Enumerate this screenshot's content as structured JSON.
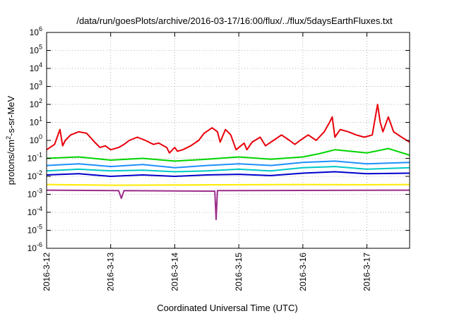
{
  "chart_data": {
    "type": "line",
    "title": "/data/run/goesPlots/archive/2016-03-17/16:00/flux/../flux/5daysEarthFluxes.txt",
    "xlabel": "Coordinated Universal Time (UTC)",
    "ylabel_parts": {
      "before": "protons/cm",
      "sup": "2",
      "after": "-s-sr-MeV"
    },
    "xlim": [
      "2016-03-12 00:00",
      "2016-03-17 16:00"
    ],
    "x_ticks": [
      "2016-3-12",
      "2016-3-13",
      "2016-3-14",
      "2016-3-15",
      "2016-3-16",
      "2016-3-17"
    ],
    "yscale": "log",
    "ylim": [
      1e-06,
      1000000.0
    ],
    "y_ticks": [
      {
        "base": "10",
        "exp": "-6"
      },
      {
        "base": "10",
        "exp": "-5"
      },
      {
        "base": "10",
        "exp": "-4"
      },
      {
        "base": "10",
        "exp": "-3"
      },
      {
        "base": "10",
        "exp": "-2"
      },
      {
        "base": "10",
        "exp": "-1"
      },
      {
        "base": "10",
        "exp": "0"
      },
      {
        "base": "10",
        "exp": "1"
      },
      {
        "base": "10",
        "exp": "2"
      },
      {
        "base": "10",
        "exp": "3"
      },
      {
        "base": "10",
        "exp": "4"
      },
      {
        "base": "10",
        "exp": "5"
      },
      {
        "base": "10",
        "exp": "6"
      }
    ],
    "grid": true,
    "series": [
      {
        "color": "#e8000b",
        "x": [
          "2016-03-12 00:00",
          "2016-03-12 03:00",
          "2016-03-12 05:00",
          "2016-03-12 06:00",
          "2016-03-12 07:00",
          "2016-03-12 09:00",
          "2016-03-12 12:00",
          "2016-03-12 15:00",
          "2016-03-12 18:00",
          "2016-03-12 20:00",
          "2016-03-12 22:00",
          "2016-03-13 00:00",
          "2016-03-13 03:00",
          "2016-03-13 05:00",
          "2016-03-13 07:00",
          "2016-03-13 10:00",
          "2016-03-13 13:00",
          "2016-03-13 16:00",
          "2016-03-13 18:00",
          "2016-03-13 21:00",
          "2016-03-13 22:00",
          "2016-03-14 00:00",
          "2016-03-14 01:00",
          "2016-03-14 03:00",
          "2016-03-14 06:00",
          "2016-03-14 09:00",
          "2016-03-14 11:00",
          "2016-03-14 14:00",
          "2016-03-14 16:00",
          "2016-03-14 17:00",
          "2016-03-14 19:00",
          "2016-03-14 21:00",
          "2016-03-14 23:00",
          "2016-03-15 02:00",
          "2016-03-15 03:00",
          "2016-03-15 05:00",
          "2016-03-15 08:00",
          "2016-03-15 10:00",
          "2016-03-15 13:00",
          "2016-03-15 16:00",
          "2016-03-15 19:00",
          "2016-03-15 21:00",
          "2016-03-15 23:00",
          "2016-03-16 02:00",
          "2016-03-16 05:00",
          "2016-03-16 08:00",
          "2016-03-16 10:00",
          "2016-03-16 11:00",
          "2016-03-16 12:00",
          "2016-03-16 14:00",
          "2016-03-16 17:00",
          "2016-03-16 20:00",
          "2016-03-16 23:00",
          "2016-03-17 02:00",
          "2016-03-17 04:00",
          "2016-03-17 05:00",
          "2016-03-17 06:00",
          "2016-03-17 08:00",
          "2016-03-17 10:00",
          "2016-03-17 13:00",
          "2016-03-17 16:00"
        ],
        "y": [
          0.3,
          0.6,
          4,
          0.5,
          1,
          2,
          3,
          2.5,
          0.8,
          0.4,
          0.5,
          0.3,
          0.4,
          0.6,
          1,
          1.5,
          1,
          0.6,
          0.7,
          0.4,
          0.2,
          0.4,
          0.25,
          0.3,
          0.5,
          1,
          2.5,
          5,
          3,
          0.8,
          4,
          2,
          0.3,
          0.7,
          0.3,
          0.8,
          1.5,
          0.5,
          1,
          2,
          1,
          0.6,
          1,
          2,
          1,
          3,
          10,
          20,
          1.5,
          4,
          3,
          2,
          1.5,
          2,
          100,
          10,
          3,
          20,
          3,
          1.5,
          0.8
        ]
      },
      {
        "color": "#00d400",
        "x": [
          "2016-03-12 00:00",
          "2016-03-12 12:00",
          "2016-03-13 00:00",
          "2016-03-13 12:00",
          "2016-03-14 00:00",
          "2016-03-14 12:00",
          "2016-03-15 00:00",
          "2016-03-15 12:00",
          "2016-03-16 00:00",
          "2016-03-16 06:00",
          "2016-03-16 12:00",
          "2016-03-17 00:00",
          "2016-03-17 08:00",
          "2016-03-17 16:00"
        ],
        "y": [
          0.1,
          0.12,
          0.08,
          0.1,
          0.07,
          0.09,
          0.12,
          0.09,
          0.12,
          0.18,
          0.3,
          0.2,
          0.35,
          0.15
        ]
      },
      {
        "color": "#1e90ff",
        "x": [
          "2016-03-12 00:00",
          "2016-03-12 12:00",
          "2016-03-13 00:00",
          "2016-03-13 12:00",
          "2016-03-14 00:00",
          "2016-03-14 12:00",
          "2016-03-15 00:00",
          "2016-03-15 12:00",
          "2016-03-16 00:00",
          "2016-03-16 12:00",
          "2016-03-17 00:00",
          "2016-03-17 16:00"
        ],
        "y": [
          0.04,
          0.05,
          0.035,
          0.045,
          0.03,
          0.04,
          0.05,
          0.04,
          0.06,
          0.07,
          0.05,
          0.06
        ]
      },
      {
        "color": "#00c8c8",
        "x": [
          "2016-03-12 00:00",
          "2016-03-12 12:00",
          "2016-03-13 00:00",
          "2016-03-13 12:00",
          "2016-03-14 00:00",
          "2016-03-14 12:00",
          "2016-03-15 00:00",
          "2016-03-15 12:00",
          "2016-03-16 00:00",
          "2016-03-16 12:00",
          "2016-03-17 00:00",
          "2016-03-17 16:00"
        ],
        "y": [
          0.02,
          0.025,
          0.02,
          0.022,
          0.018,
          0.02,
          0.025,
          0.02,
          0.03,
          0.035,
          0.025,
          0.03
        ]
      },
      {
        "color": "#0000cd",
        "x": [
          "2016-03-12 00:00",
          "2016-03-12 12:00",
          "2016-03-13 00:00",
          "2016-03-13 12:00",
          "2016-03-14 00:00",
          "2016-03-14 12:00",
          "2016-03-15 00:00",
          "2016-03-15 12:00",
          "2016-03-16 00:00",
          "2016-03-16 12:00",
          "2016-03-17 00:00",
          "2016-03-17 16:00"
        ],
        "y": [
          0.012,
          0.014,
          0.01,
          0.012,
          0.01,
          0.012,
          0.013,
          0.011,
          0.015,
          0.018,
          0.014,
          0.015
        ]
      },
      {
        "color": "#ffeb00",
        "x": [
          "2016-03-12 00:00",
          "2016-03-13 00:00",
          "2016-03-14 00:00",
          "2016-03-15 00:00",
          "2016-03-16 00:00",
          "2016-03-17 00:00",
          "2016-03-17 16:00"
        ],
        "y": [
          0.0035,
          0.0032,
          0.0033,
          0.0034,
          0.0035,
          0.0034,
          0.0035
        ]
      },
      {
        "color": "#9b2d8a",
        "x": [
          "2016-03-12 00:00",
          "2016-03-13 03:00",
          "2016-03-13 04:00",
          "2016-03-13 05:00",
          "2016-03-14 15:00",
          "2016-03-14 15:30",
          "2016-03-14 16:00",
          "2016-03-17 16:00"
        ],
        "y": [
          0.0017,
          0.0016,
          0.0006,
          0.0016,
          0.0015,
          4e-05,
          0.0016,
          0.0017
        ]
      }
    ]
  }
}
